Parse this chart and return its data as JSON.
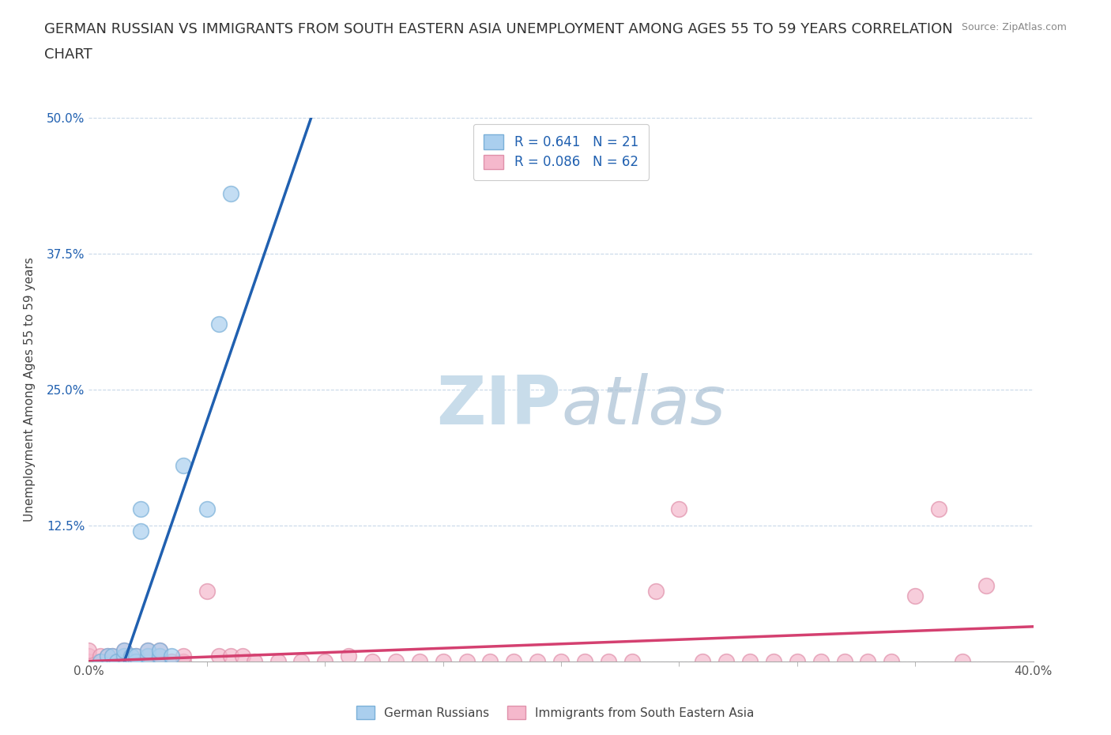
{
  "title_line1": "GERMAN RUSSIAN VS IMMIGRANTS FROM SOUTH EASTERN ASIA UNEMPLOYMENT AMONG AGES 55 TO 59 YEARS CORRELATION",
  "title_line2": "CHART",
  "source": "Source: ZipAtlas.com",
  "xmin": 0.0,
  "xmax": 0.4,
  "ymin": 0.0,
  "ymax": 0.5,
  "blue_scatter_x": [
    0.005,
    0.008,
    0.01,
    0.012,
    0.015,
    0.015,
    0.018,
    0.018,
    0.02,
    0.02,
    0.022,
    0.022,
    0.025,
    0.025,
    0.03,
    0.03,
    0.035,
    0.04,
    0.05,
    0.055,
    0.06
  ],
  "blue_scatter_y": [
    0.0,
    0.005,
    0.005,
    0.0,
    0.005,
    0.01,
    0.0,
    0.005,
    0.0,
    0.005,
    0.12,
    0.14,
    0.005,
    0.01,
    0.005,
    0.01,
    0.005,
    0.18,
    0.14,
    0.31,
    0.43
  ],
  "pink_scatter_x": [
    0.0,
    0.0,
    0.0,
    0.005,
    0.005,
    0.008,
    0.008,
    0.01,
    0.01,
    0.012,
    0.015,
    0.015,
    0.015,
    0.018,
    0.02,
    0.02,
    0.025,
    0.025,
    0.025,
    0.03,
    0.03,
    0.03,
    0.03,
    0.035,
    0.04,
    0.04,
    0.05,
    0.055,
    0.06,
    0.065,
    0.07,
    0.08,
    0.09,
    0.1,
    0.11,
    0.12,
    0.13,
    0.14,
    0.15,
    0.16,
    0.17,
    0.18,
    0.19,
    0.2,
    0.21,
    0.22,
    0.23,
    0.24,
    0.25,
    0.26,
    0.27,
    0.28,
    0.29,
    0.3,
    0.31,
    0.32,
    0.33,
    0.34,
    0.35,
    0.36,
    0.37,
    0.38
  ],
  "pink_scatter_y": [
    0.0,
    0.005,
    0.01,
    0.0,
    0.005,
    0.0,
    0.005,
    0.0,
    0.005,
    0.0,
    0.0,
    0.005,
    0.01,
    0.0,
    0.0,
    0.005,
    0.0,
    0.005,
    0.01,
    0.0,
    0.0,
    0.005,
    0.01,
    0.0,
    0.0,
    0.005,
    0.065,
    0.005,
    0.005,
    0.005,
    0.0,
    0.0,
    0.0,
    0.0,
    0.005,
    0.0,
    0.0,
    0.0,
    0.0,
    0.0,
    0.0,
    0.0,
    0.0,
    0.0,
    0.0,
    0.0,
    0.0,
    0.065,
    0.14,
    0.0,
    0.0,
    0.0,
    0.0,
    0.0,
    0.0,
    0.0,
    0.0,
    0.0,
    0.06,
    0.14,
    0.0,
    0.07
  ],
  "blue_color": "#aacfee",
  "blue_edge_color": "#7ab0d8",
  "pink_color": "#f5b8cc",
  "pink_edge_color": "#e090aa",
  "blue_line_color": "#2060b0",
  "blue_dash_color": "#7ab0d8",
  "pink_line_color": "#d44070",
  "blue_R": 0.641,
  "blue_N": 21,
  "pink_R": 0.086,
  "pink_N": 62,
  "legend_text_color": "#2060b0",
  "grid_color": "#c8d8e8",
  "background_color": "#ffffff",
  "title_fontsize": 13,
  "axis_label_fontsize": 11,
  "tick_fontsize": 11,
  "watermark_color": "#c8dcea"
}
